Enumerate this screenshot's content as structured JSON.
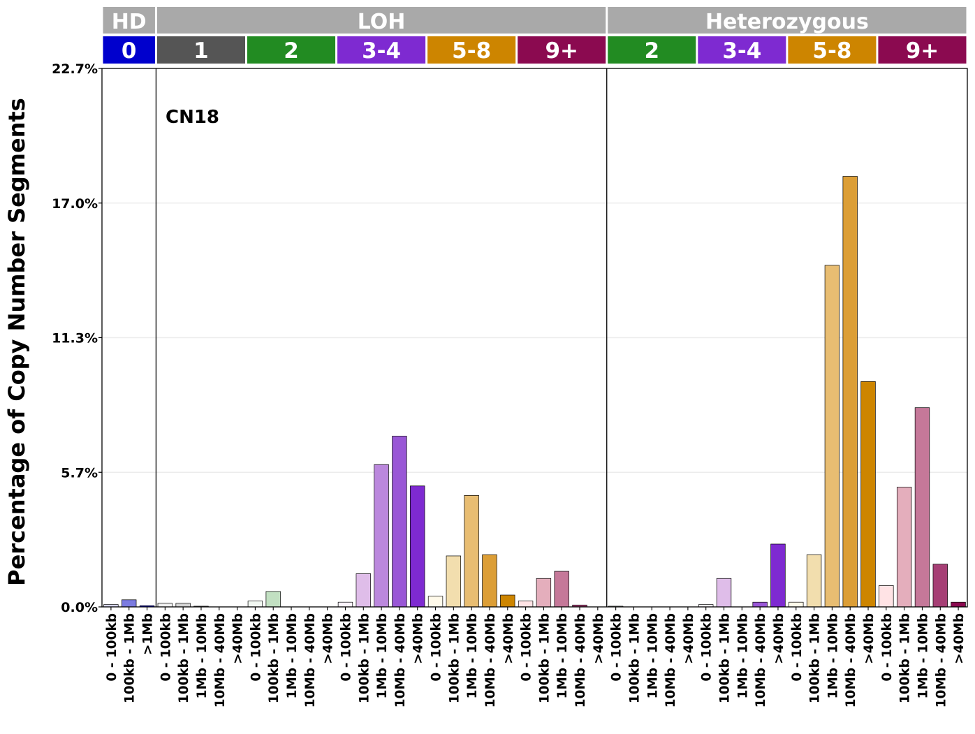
{
  "chart_data": {
    "type": "bar",
    "annotation": "CN18",
    "ylabel": "Percentage of Copy Number Segments",
    "xlabel": "",
    "ylim": [
      0,
      22.7
    ],
    "yticks": [
      "0.0%",
      "5.7%",
      "11.3%",
      "17.0%",
      "22.7%"
    ],
    "ytick_values": [
      0,
      5.675,
      11.35,
      17.025,
      22.7
    ],
    "grid": "horizontal",
    "top_groups": [
      {
        "label": "HD",
        "color": "#a9a9a9",
        "count": 3
      },
      {
        "label": "LOH",
        "color": "#a9a9a9",
        "count": 25
      },
      {
        "label": "Heterozygous",
        "color": "#a9a9a9",
        "count": 20
      }
    ],
    "cn_groups": [
      {
        "label": "0",
        "color": "#0000cd",
        "count": 3
      },
      {
        "label": "1",
        "color": "#555555",
        "count": 5
      },
      {
        "label": "2",
        "color": "#228b22",
        "count": 5
      },
      {
        "label": "3-4",
        "color": "#7e2ad1",
        "count": 5
      },
      {
        "label": "5-8",
        "color": "#cd8500",
        "count": 5
      },
      {
        "label": "9+",
        "color": "#8b0a50",
        "count": 5
      },
      {
        "label": "2",
        "color": "#228b22",
        "count": 5
      },
      {
        "label": "3-4",
        "color": "#7e2ad1",
        "count": 5
      },
      {
        "label": "5-8",
        "color": "#cd8500",
        "count": 5
      },
      {
        "label": "9+",
        "color": "#8b0a50",
        "count": 5
      }
    ],
    "categories": [
      "0 - 100kb",
      "100kb - 1Mb",
      ">1Mb",
      "0 - 100kb",
      "100kb - 1Mb",
      "1Mb - 10Mb",
      "10Mb - 40Mb",
      ">40Mb",
      "0 - 100kb",
      "100kb - 1Mb",
      "1Mb - 10Mb",
      "10Mb - 40Mb",
      ">40Mb",
      "0 - 100kb",
      "100kb - 1Mb",
      "1Mb - 10Mb",
      "10Mb - 40Mb",
      ">40Mb",
      "0 - 100kb",
      "100kb - 1Mb",
      "1Mb - 10Mb",
      "10Mb - 40Mb",
      ">40Mb",
      "0 - 100kb",
      "100kb - 1Mb",
      "1Mb - 10Mb",
      "10Mb - 40Mb",
      ">40Mb",
      "0 - 100kb",
      "100kb - 1Mb",
      "1Mb - 10Mb",
      "10Mb - 40Mb",
      ">40Mb",
      "0 - 100kb",
      "100kb - 1Mb",
      "1Mb - 10Mb",
      "10Mb - 40Mb",
      ">40Mb",
      "0 - 100kb",
      "100kb - 1Mb",
      "1Mb - 10Mb",
      "10Mb - 40Mb",
      ">40Mb",
      "0 - 100kb",
      "100kb - 1Mb",
      "1Mb - 10Mb",
      "10Mb - 40Mb",
      ">40Mb"
    ],
    "values": [
      0.1,
      0.3,
      0.05,
      0.15,
      0.15,
      0.03,
      0,
      0,
      0.25,
      0.65,
      0,
      0,
      0,
      0.2,
      1.4,
      6.0,
      7.2,
      5.1,
      0.45,
      2.15,
      4.7,
      2.2,
      0.5,
      0.25,
      1.2,
      1.5,
      0.08,
      0,
      0.03,
      0,
      0,
      0,
      0,
      0.1,
      1.2,
      0,
      0.2,
      2.65,
      0.2,
      2.2,
      14.4,
      18.15,
      9.5,
      0.9,
      5.05,
      8.4,
      1.8,
      0.2
    ],
    "colors": [
      "#d6d6f5",
      "#7b7be0",
      "#0000cd",
      "#efefef",
      "#d3d3d3",
      "#a9a9a9",
      "#7d7d7d",
      "#555555",
      "#f2f8f2",
      "#c2e0c2",
      "#8cc38c",
      "#4fa34f",
      "#228b22",
      "#fbf3fd",
      "#dfbde9",
      "#bb88dd",
      "#9957d6",
      "#7e2ad1",
      "#fffaea",
      "#f2deae",
      "#e8bd72",
      "#dc9e36",
      "#cd8500",
      "#ffe3e5",
      "#e4aebc",
      "#c57899",
      "#a63f75",
      "#8b0a50",
      "#f2f8f2",
      "#c2e0c2",
      "#8cc38c",
      "#4fa34f",
      "#228b22",
      "#fbf3fd",
      "#dfbde9",
      "#bb88dd",
      "#9957d6",
      "#7e2ad1",
      "#fffaea",
      "#f2deae",
      "#e8bd72",
      "#dc9e36",
      "#cd8500",
      "#ffe3e5",
      "#e4aebc",
      "#c57899",
      "#a63f75",
      "#8b0a50"
    ]
  }
}
